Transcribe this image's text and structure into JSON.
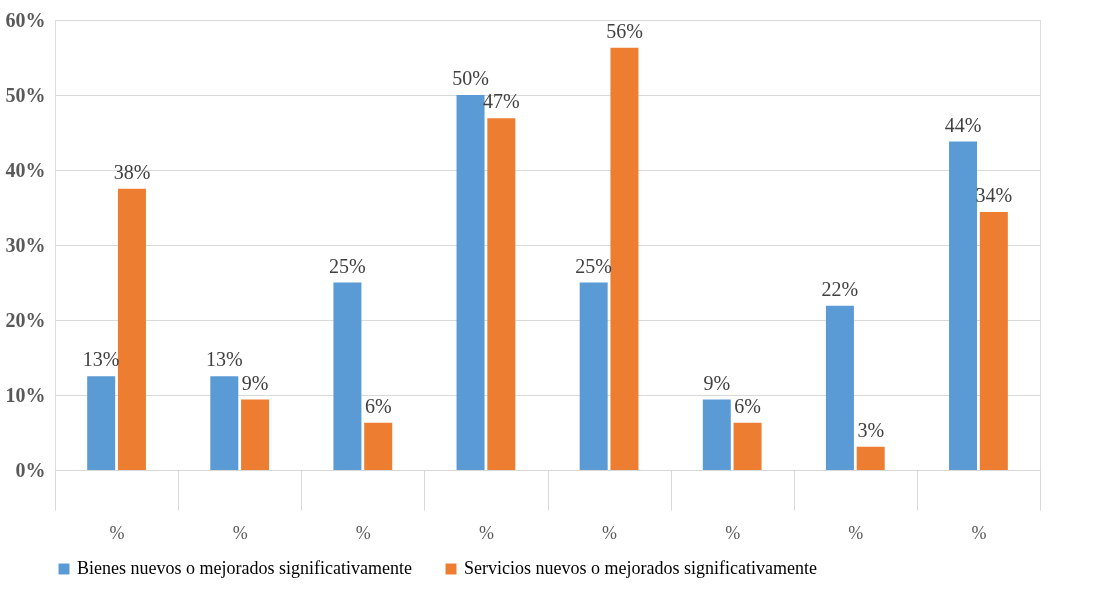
{
  "chart_data": {
    "type": "bar",
    "categories": [
      "%",
      "%",
      "%",
      "%",
      "%",
      "%",
      "%",
      "%"
    ],
    "series": [
      {
        "name": "Bienes nuevos o mejorados significativamente",
        "color": "#5b9bd5",
        "values": [
          12.5,
          12.5,
          25,
          50,
          25,
          9.4,
          21.9,
          43.8
        ],
        "value_labels": [
          "13%",
          "13%",
          "25%",
          "50%",
          "25%",
          "9%",
          "22%",
          "44%"
        ]
      },
      {
        "name": "Servicios nuevos o mejorados significativamente",
        "color": "#ed7d31",
        "values": [
          37.5,
          9.4,
          6.3,
          46.9,
          56.3,
          6.3,
          3.1,
          34.4
        ],
        "value_labels": [
          "38%",
          "9%",
          "6%",
          "47%",
          "56%",
          "6%",
          "3%",
          "34%"
        ]
      }
    ],
    "ylim": [
      0,
      60
    ],
    "yticks": [
      {
        "value": 0,
        "label": "0%"
      },
      {
        "value": 10,
        "label": "10%"
      },
      {
        "value": 20,
        "label": "20%"
      },
      {
        "value": 30,
        "label": "30%"
      },
      {
        "value": 40,
        "label": "40%"
      },
      {
        "value": 50,
        "label": "50%"
      },
      {
        "value": 60,
        "label": "60%"
      }
    ],
    "grid": "y",
    "legend": "bottom"
  }
}
